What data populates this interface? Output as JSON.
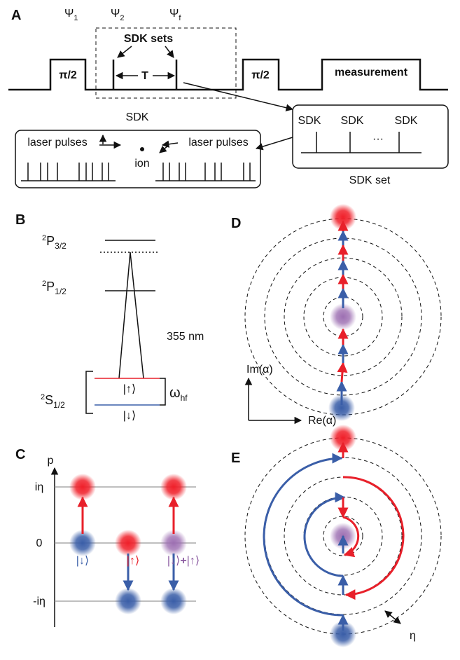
{
  "panels": {
    "A": "A",
    "B": "B",
    "C": "C",
    "D": "D",
    "E": "E"
  },
  "panel_a": {
    "psi1": {
      "main": "Ψ",
      "sub": "1"
    },
    "psi2": {
      "main": "Ψ",
      "sub": "2"
    },
    "psif": {
      "main": "Ψ",
      "sub": "f"
    },
    "sdk_sets": "SDK sets",
    "pi2_left": "π/2",
    "t": "T",
    "pi2_right": "π/2",
    "measurement": "measurement",
    "sdk_set_box": {
      "items": [
        "SDK",
        "SDK",
        "SDK"
      ],
      "dots": "···",
      "caption": "SDK set"
    },
    "sdk_box": {
      "title": "SDK",
      "left": "laser pulses",
      "right": "laser pulses",
      "ion": "ion"
    }
  },
  "panel_b": {
    "p32": {
      "sup": "2",
      "main": "P",
      "sub": "3/2"
    },
    "p12": {
      "sup": "2",
      "main": "P",
      "sub": "1/2"
    },
    "s12": {
      "sup": "2",
      "main": "S",
      "sub": "1/2"
    },
    "wavelength": "355 nm",
    "up": "|↑⟩",
    "down": "|↓⟩",
    "omega": {
      "main": "ω",
      "sub": "hf"
    }
  },
  "panel_c": {
    "axis": "p",
    "ticks": [
      "iη",
      "0",
      "-iη"
    ],
    "down": "|↓⟩",
    "up": "|↑⟩",
    "plus": {
      "a": "|↓⟩",
      "op": "+",
      "b": "|↑⟩"
    }
  },
  "panel_d": {
    "im": "Im(α)",
    "re": "Re(α)"
  },
  "panel_e": {
    "eta": "η"
  }
}
